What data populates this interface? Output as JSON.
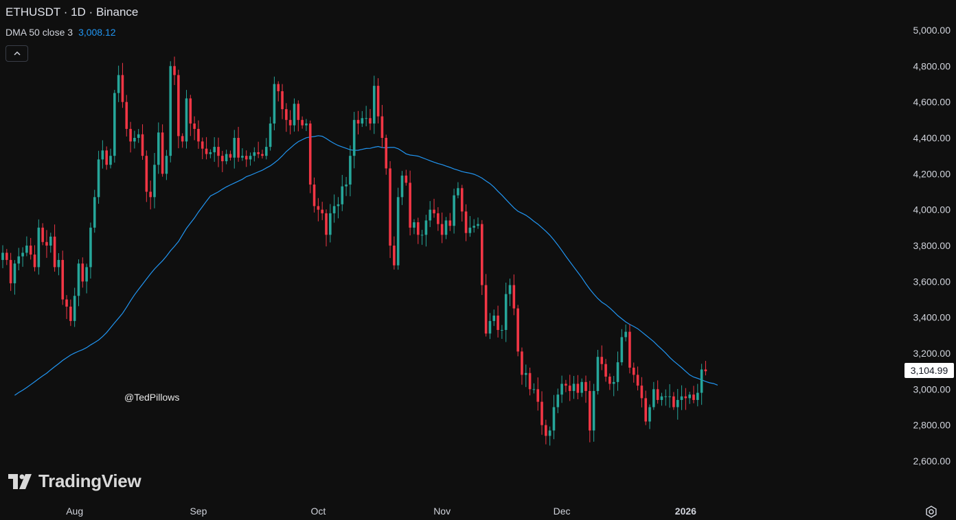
{
  "header": {
    "symbol": "ETHUSDT",
    "separator": " · ",
    "interval": "1D",
    "exchange": "Binance"
  },
  "indicator": {
    "label": "DMA 50 close 3",
    "value": "3,008.12",
    "color": "#2196f3"
  },
  "collapse_icon": "chevron-up-icon",
  "watermark": "@TedPillows",
  "brand": "TradingView",
  "last_price_label": "3,104.99",
  "colors": {
    "background": "#0f0f0f",
    "up": "#26a69a",
    "down": "#f23645",
    "ma": "#2196f3",
    "axis_text": "#d1d4dc"
  },
  "chart_data": {
    "type": "candlestick",
    "title": "ETHUSDT · 1D · Binance",
    "ylim": [
      2500,
      5080
    ],
    "y_ticks": [
      {
        "value": 5000,
        "label": "5,000.00"
      },
      {
        "value": 4800,
        "label": "4,800.00"
      },
      {
        "value": 4600,
        "label": "4,600.00"
      },
      {
        "value": 4400,
        "label": "4,400.00"
      },
      {
        "value": 4200,
        "label": "4,200.00"
      },
      {
        "value": 4000,
        "label": "4,000.00"
      },
      {
        "value": 3800,
        "label": "3,800.00"
      },
      {
        "value": 3600,
        "label": "3,600.00"
      },
      {
        "value": 3400,
        "label": "3,400.00"
      },
      {
        "value": 3200,
        "label": "3,200.00"
      },
      {
        "value": 3000,
        "label": "3,000.00"
      },
      {
        "value": 2800,
        "label": "2,800.00"
      },
      {
        "value": 2600,
        "label": "2,600.00"
      }
    ],
    "x_ticks": [
      {
        "date": "2025-08-01",
        "label": "Aug",
        "bold": false
      },
      {
        "date": "2025-09-01",
        "label": "Sep",
        "bold": false
      },
      {
        "date": "2025-10-01",
        "label": "Oct",
        "bold": false
      },
      {
        "date": "2025-11-01",
        "label": "Nov",
        "bold": false
      },
      {
        "date": "2025-12-01",
        "label": "Dec",
        "bold": false
      },
      {
        "date": "2026-01-01",
        "label": "2026",
        "bold": true
      }
    ],
    "first_date": "2025-07-14",
    "last_price": 3104.99,
    "closes": [
      3760,
      3720,
      3590,
      3700,
      3740,
      3760,
      3800,
      3750,
      3680,
      3900,
      3820,
      3800,
      3850,
      3680,
      3720,
      3500,
      3460,
      3380,
      3520,
      3700,
      3600,
      3680,
      3900,
      4070,
      4280,
      4330,
      4250,
      4300,
      4650,
      4750,
      4600,
      4450,
      4380,
      4400,
      4420,
      4300,
      4100,
      4070,
      4250,
      4430,
      4200,
      4300,
      4800,
      4750,
      4410,
      4380,
      4620,
      4480,
      4450,
      4380,
      4340,
      4310,
      4320,
      4350,
      4300,
      4270,
      4310,
      4290,
      4400,
      4290,
      4300,
      4280,
      4300,
      4320,
      4310,
      4300,
      4350,
      4480,
      4700,
      4660,
      4560,
      4500,
      4470,
      4590,
      4500,
      4470,
      4480,
      4140,
      4020,
      4000,
      3980,
      3860,
      3980,
      4020,
      4030,
      4130,
      4140,
      4300,
      4500,
      4480,
      4510,
      4510,
      4480,
      4690,
      4520,
      4400,
      4230,
      3800,
      3690,
      4070,
      4190,
      4150,
      3900,
      3930,
      3860,
      3860,
      3940,
      4000,
      3980,
      3920,
      3860,
      3940,
      3910,
      4080,
      4120,
      3990,
      3870,
      3900,
      3910,
      3920,
      3580,
      3310,
      3380,
      3410,
      3330,
      3330,
      3530,
      3580,
      3450,
      3210,
      3080,
      3090,
      3000,
      3000,
      2930,
      2800,
      2740,
      2770,
      2900,
      2970,
      3030,
      3020,
      2990,
      3030,
      2980,
      3040,
      2990,
      2770,
      2990,
      3180,
      3140,
      3070,
      3030,
      3040,
      3150,
      3290,
      3320,
      3120,
      3080,
      3020,
      2950,
      2820,
      2900,
      3000,
      2940,
      2960,
      2960,
      2960,
      2900,
      2940,
      2960,
      2950,
      2970,
      2940,
      2980,
      3110,
      3100
    ]
  }
}
